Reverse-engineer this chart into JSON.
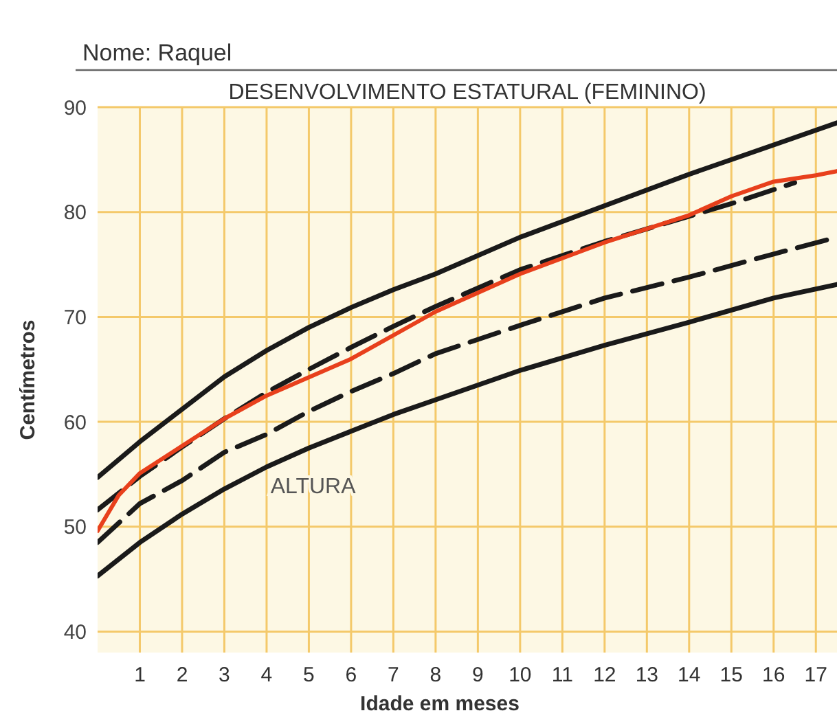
{
  "chart_data": {
    "type": "line",
    "title": "DESENVOLVIMENTO ESTATURAL (FEMININO)",
    "xlabel": "Idade em meses",
    "ylabel": "Centímetros",
    "annotations": [
      "Nome: Raquel",
      "ALTURA"
    ],
    "xlim": [
      0,
      17.5
    ],
    "xticks": [
      1,
      2,
      3,
      4,
      5,
      6,
      7,
      8,
      9,
      10,
      11,
      12,
      13,
      14,
      15,
      16,
      17
    ],
    "ylim": [
      38,
      90
    ],
    "yticks": [
      40,
      50,
      60,
      70,
      80,
      90
    ],
    "grid": true,
    "marker": "none",
    "series": [
      {
        "color": "#1a1a1a",
        "line_style": "solid",
        "x": [
          0,
          1,
          2,
          3,
          4,
          5,
          6,
          7,
          8,
          10,
          12,
          14,
          16,
          17.5
        ],
        "values": [
          54.7,
          58.1,
          61.2,
          64.3,
          66.8,
          69.0,
          70.9,
          72.6,
          74.1,
          77.6,
          80.6,
          83.6,
          86.4,
          88.5
        ]
      },
      {
        "color": "#1a1a1a",
        "line_style": "dashed",
        "x": [
          0,
          1,
          2,
          3,
          4,
          5,
          6,
          7,
          8,
          10,
          12,
          14,
          15,
          16.5
        ],
        "values": [
          51.6,
          54.8,
          57.6,
          60.3,
          62.8,
          65.0,
          67.1,
          69.1,
          71.0,
          74.5,
          77.2,
          79.6,
          80.8,
          82.8
        ]
      },
      {
        "color": "#1a1a1a",
        "line_style": "dashed",
        "x": [
          0,
          1,
          2,
          3,
          4,
          5,
          6,
          7,
          8,
          10,
          12,
          14,
          16,
          17.5
        ],
        "values": [
          48.5,
          52.2,
          54.4,
          57.1,
          58.8,
          61.0,
          62.9,
          64.6,
          66.5,
          69.2,
          71.8,
          73.8,
          76.0,
          77.6
        ]
      },
      {
        "color": "#1a1a1a",
        "line_style": "solid",
        "x": [
          0,
          1,
          2,
          3,
          4,
          5,
          6,
          7,
          8,
          10,
          12,
          14,
          16,
          17.5
        ],
        "values": [
          45.3,
          48.5,
          51.2,
          53.6,
          55.7,
          57.5,
          59.1,
          60.7,
          62.1,
          64.9,
          67.3,
          69.5,
          71.8,
          73.1
        ]
      },
      {
        "color": "#e8401c",
        "line_style": "solid",
        "x": [
          0,
          0.5,
          1,
          2,
          3,
          4,
          6,
          8,
          10,
          12,
          14,
          15,
          16,
          17,
          17.5
        ],
        "values": [
          49.6,
          53.0,
          55.1,
          57.7,
          60.3,
          62.5,
          66.0,
          70.5,
          74.1,
          77.1,
          79.7,
          81.5,
          82.9,
          83.5,
          83.9
        ]
      }
    ]
  }
}
